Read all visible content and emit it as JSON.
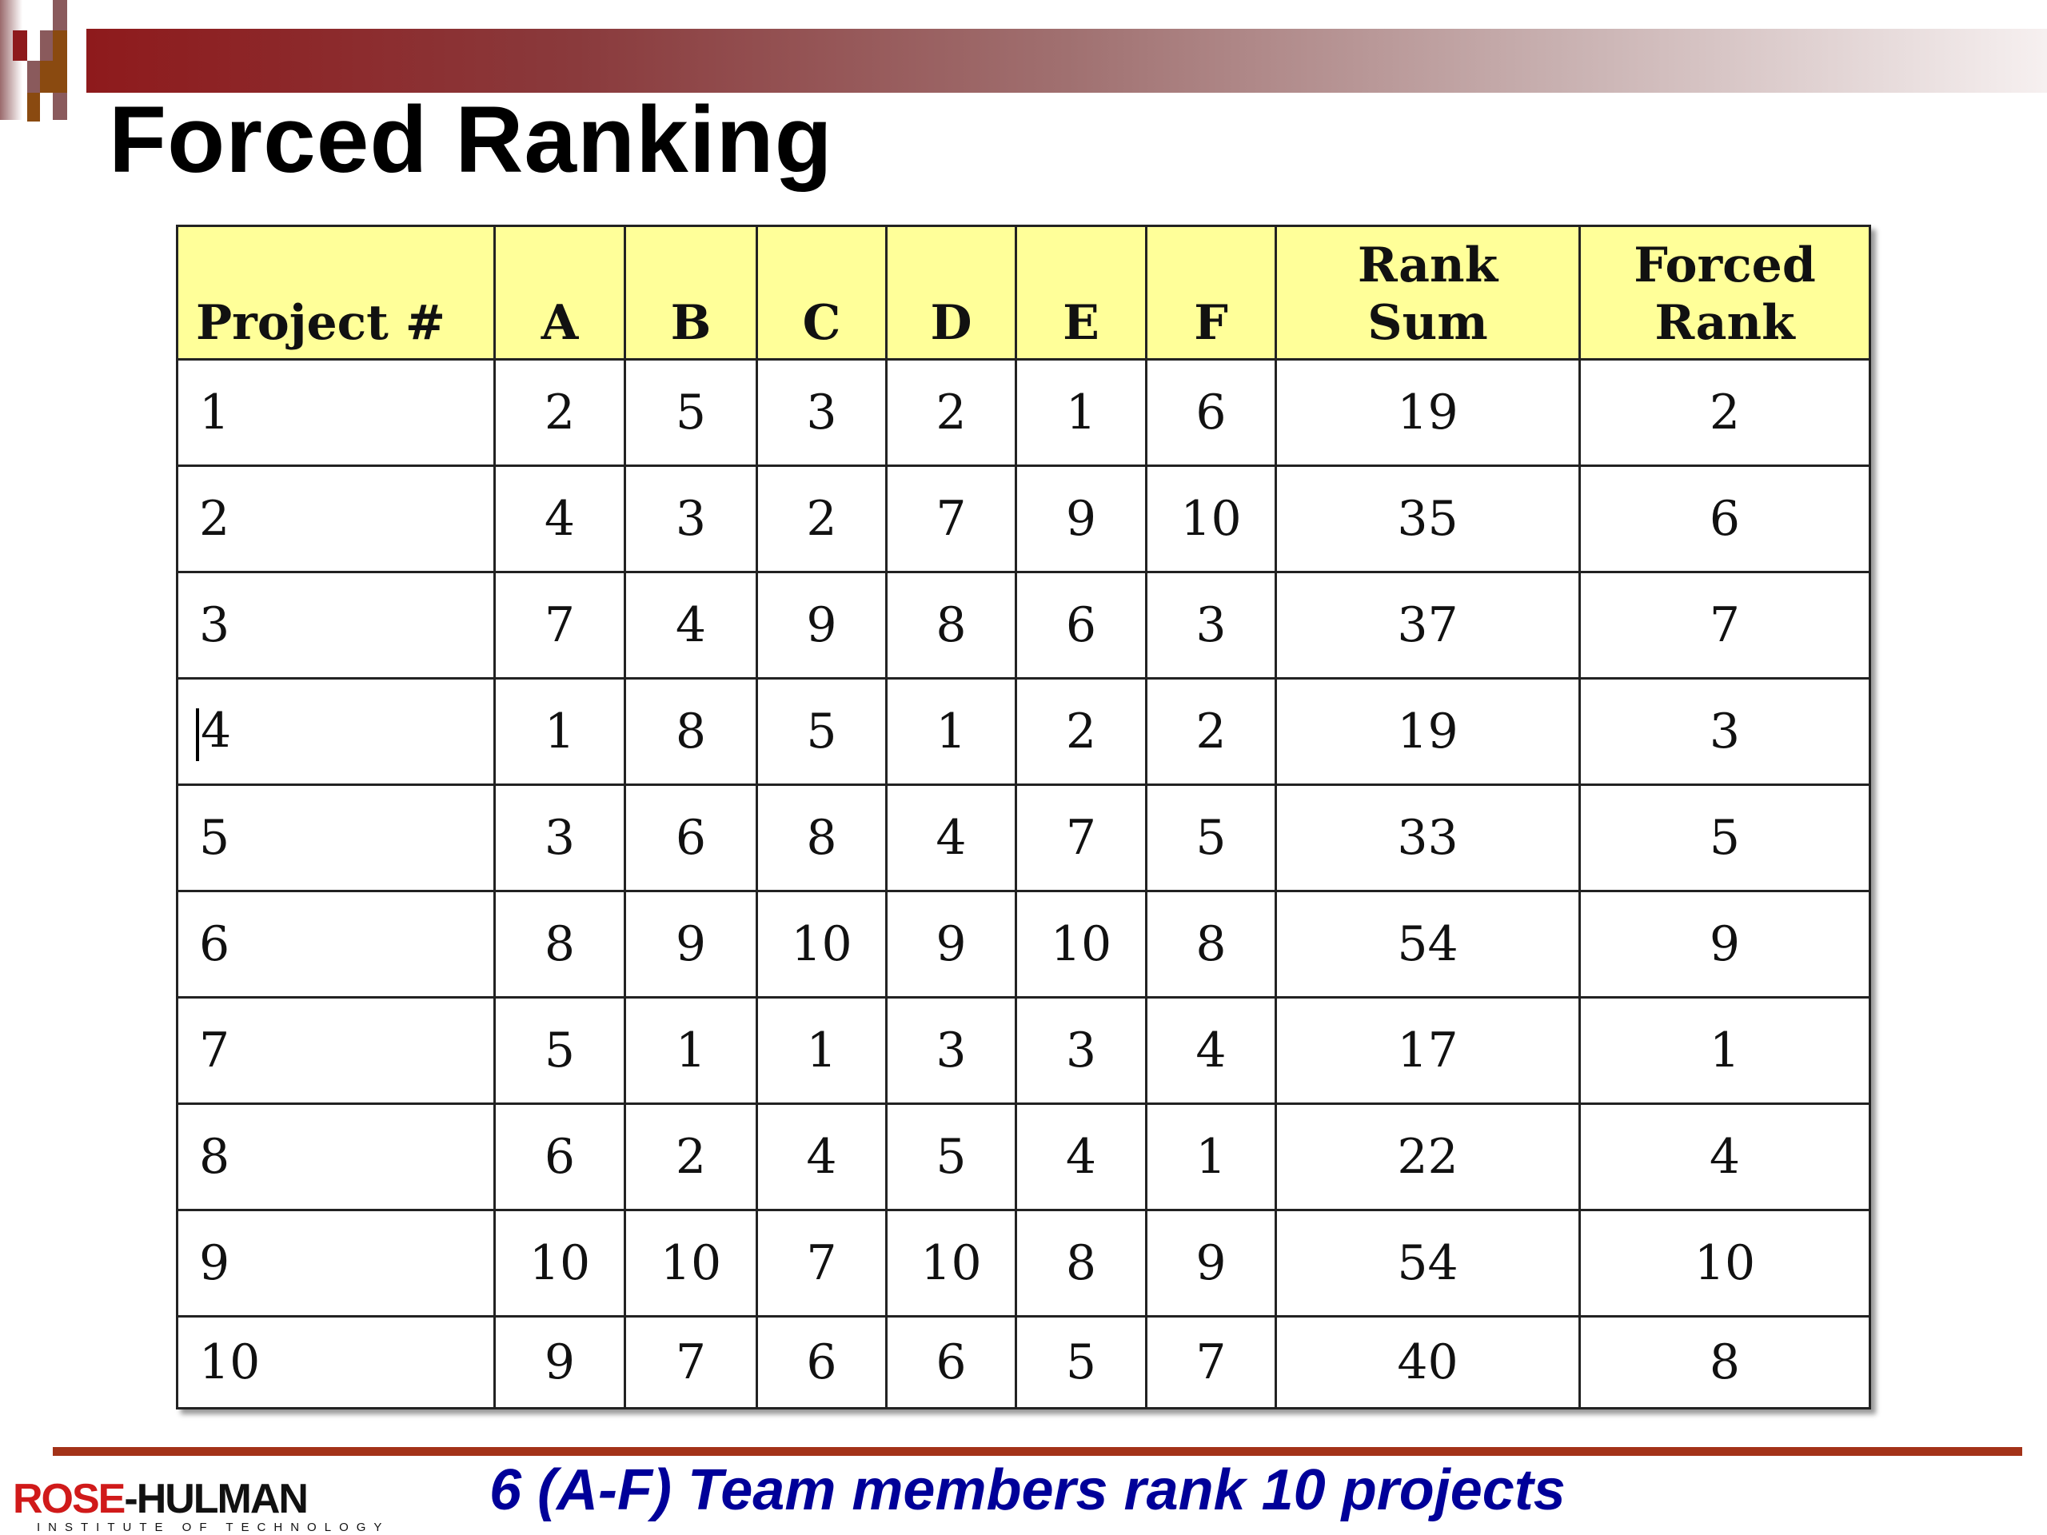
{
  "slide": {
    "title": "Forced Ranking",
    "subtitle": "6 (A-F) Team members rank 10 projects",
    "logo_text": "ROSE-HULMAN",
    "logo_subtext": "INSTITUTE OF TECHNOLOGY"
  },
  "colors": {
    "header_fill": "#ffff99",
    "subtitle": "#000099",
    "rule": "#a33218",
    "brand_red": "#8e1a1c"
  },
  "table": {
    "headers": [
      "Project #",
      "A",
      "B",
      "C",
      "D",
      "E",
      "F",
      "Rank Sum",
      "Forced Rank"
    ],
    "header_lines": {
      "rank_sum": [
        "Rank",
        "Sum"
      ],
      "forced_rank": [
        "Forced",
        "Rank"
      ]
    },
    "rows": [
      [
        "1",
        "2",
        "5",
        "3",
        "2",
        "1",
        "6",
        "19",
        "2"
      ],
      [
        "2",
        "4",
        "3",
        "2",
        "7",
        "9",
        "10",
        "35",
        "6"
      ],
      [
        "3",
        "7",
        "4",
        "9",
        "8",
        "6",
        "3",
        "37",
        "7"
      ],
      [
        "4",
        "1",
        "8",
        "5",
        "1",
        "2",
        "2",
        "19",
        "3"
      ],
      [
        "5",
        "3",
        "6",
        "8",
        "4",
        "7",
        "5",
        "33",
        "5"
      ],
      [
        "6",
        "8",
        "9",
        "10",
        "9",
        "10",
        "8",
        "54",
        "9"
      ],
      [
        "7",
        "5",
        "1",
        "1",
        "3",
        "3",
        "4",
        "17",
        "1"
      ],
      [
        "8",
        "6",
        "2",
        "4",
        "5",
        "4",
        "1",
        "22",
        "4"
      ],
      [
        "9",
        "10",
        "10",
        "7",
        "10",
        "8",
        "9",
        "54",
        "10"
      ],
      [
        "10",
        "9",
        "7",
        "6",
        "6",
        "5",
        "7",
        "40",
        "8"
      ]
    ]
  }
}
